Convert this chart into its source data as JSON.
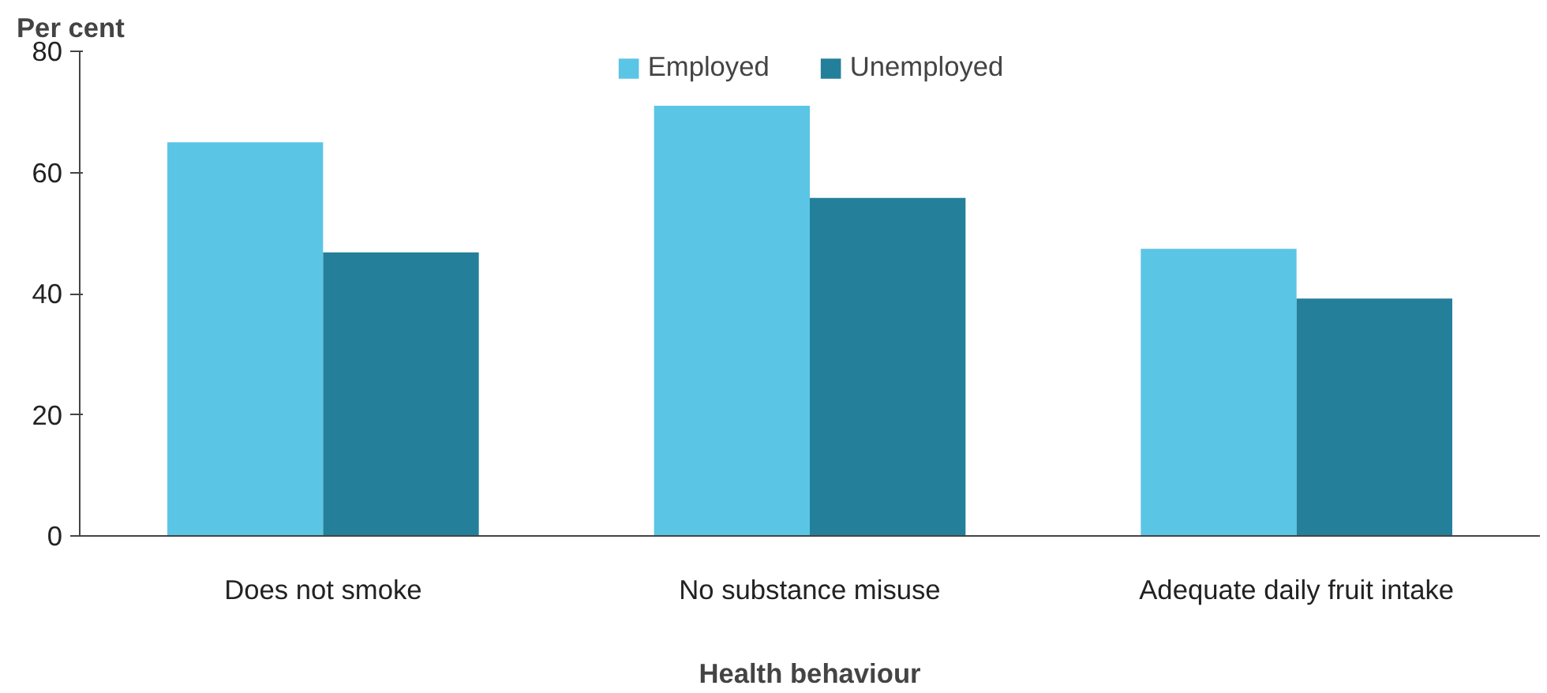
{
  "chart_data": {
    "type": "bar",
    "ylabel": "Per cent",
    "xlabel": "Health behaviour",
    "categories": [
      "Does not smoke",
      "No substance misuse",
      "Adequate daily fruit intake"
    ],
    "series": [
      {
        "name": "Employed",
        "color": "#5bc5e6",
        "values": [
          65,
          71,
          47.4
        ]
      },
      {
        "name": "Unemployed",
        "color": "#24809a",
        "values": [
          46.8,
          55.8,
          39.2
        ]
      }
    ],
    "ylim": [
      0,
      80
    ],
    "yticks": [
      0,
      20,
      40,
      60,
      80
    ],
    "grid": false,
    "legend": "top"
  }
}
